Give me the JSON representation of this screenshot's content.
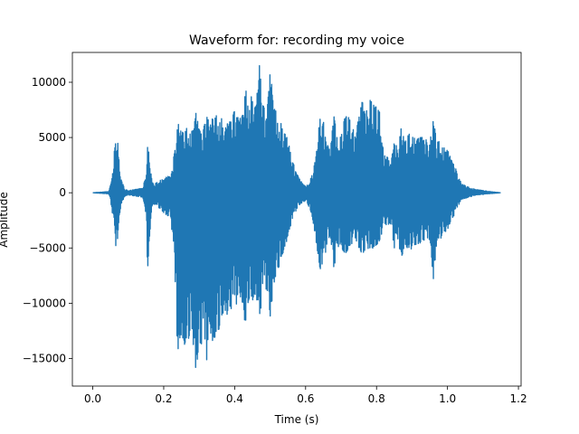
{
  "chart_data": {
    "type": "line",
    "title": "Waveform for: recording my voice",
    "xlabel": "Time (s)",
    "ylabel": "Amplitude",
    "xlim": [
      -0.0575,
      1.2075
    ],
    "ylim": [
      -17500,
      12700
    ],
    "xticks": [
      0.0,
      0.2,
      0.4,
      0.6,
      0.8,
      1.0,
      1.2
    ],
    "xtick_labels": [
      "0.0",
      "0.2",
      "0.4",
      "0.6",
      "0.8",
      "1.0",
      "1.2"
    ],
    "yticks": [
      -15000,
      -10000,
      -5000,
      0,
      5000,
      10000
    ],
    "ytick_labels": [
      "−15000",
      "−10000",
      "−5000",
      "0",
      "5000",
      "10000"
    ],
    "grid": false,
    "series": [
      {
        "color": "#1f77b4",
        "envelope": {
          "t": [
            0.0,
            0.045,
            0.05,
            0.055,
            0.06,
            0.065,
            0.07,
            0.075,
            0.08,
            0.085,
            0.09,
            0.1,
            0.12,
            0.14,
            0.15,
            0.155,
            0.16,
            0.165,
            0.17,
            0.18,
            0.19,
            0.2,
            0.21,
            0.22,
            0.23,
            0.24,
            0.25,
            0.26,
            0.27,
            0.28,
            0.29,
            0.3,
            0.31,
            0.32,
            0.33,
            0.34,
            0.35,
            0.36,
            0.37,
            0.38,
            0.39,
            0.4,
            0.41,
            0.42,
            0.43,
            0.44,
            0.45,
            0.46,
            0.47,
            0.48,
            0.49,
            0.5,
            0.51,
            0.52,
            0.53,
            0.54,
            0.55,
            0.56,
            0.57,
            0.58,
            0.59,
            0.6,
            0.61,
            0.62,
            0.63,
            0.64,
            0.65,
            0.66,
            0.67,
            0.68,
            0.69,
            0.7,
            0.71,
            0.72,
            0.73,
            0.74,
            0.75,
            0.76,
            0.77,
            0.78,
            0.79,
            0.8,
            0.81,
            0.82,
            0.83,
            0.84,
            0.85,
            0.86,
            0.87,
            0.88,
            0.89,
            0.9,
            0.91,
            0.92,
            0.93,
            0.94,
            0.95,
            0.96,
            0.97,
            0.98,
            0.99,
            1.0,
            1.01,
            1.02,
            1.03,
            1.04,
            1.06,
            1.08,
            1.1,
            1.12,
            1.15
          ],
          "max": [
            0,
            100,
            700,
            1500,
            3500,
            5400,
            4800,
            2500,
            1200,
            800,
            300,
            200,
            300,
            400,
            1500,
            4500,
            3000,
            1500,
            800,
            900,
            1200,
            1200,
            1500,
            1400,
            3600,
            6300,
            5500,
            5700,
            6000,
            5600,
            7400,
            5800,
            5300,
            7300,
            6000,
            7100,
            7000,
            7200,
            5700,
            6300,
            6600,
            7500,
            6800,
            6800,
            9500,
            8700,
            8700,
            7800,
            11600,
            8000,
            7000,
            11000,
            8400,
            7000,
            6300,
            5600,
            4800,
            3200,
            2200,
            1400,
            900,
            600,
            900,
            1800,
            3500,
            6700,
            6500,
            4400,
            3800,
            7500,
            4800,
            5100,
            7000,
            6900,
            6200,
            5200,
            6800,
            8400,
            7400,
            8500,
            8200,
            7800,
            7200,
            3500,
            3300,
            2500,
            4800,
            4000,
            6000,
            4600,
            5300,
            5300,
            4900,
            5000,
            5000,
            4800,
            4400,
            6700,
            4700,
            4600,
            4100,
            4000,
            3000,
            2500,
            1500,
            800,
            500,
            300,
            200,
            100,
            0
          ],
          "min": [
            0,
            -100,
            -700,
            -1800,
            -3000,
            -5000,
            -4300,
            -2200,
            -1000,
            -700,
            -300,
            -200,
            -300,
            -400,
            -2000,
            -7500,
            -4300,
            -1800,
            -1000,
            -1100,
            -1500,
            -1800,
            -2100,
            -2200,
            -6500,
            -15500,
            -12700,
            -14000,
            -13200,
            -12600,
            -16000,
            -14500,
            -13300,
            -15600,
            -12600,
            -13700,
            -12700,
            -12100,
            -10500,
            -11200,
            -10600,
            -10600,
            -9600,
            -9600,
            -12100,
            -9600,
            -9900,
            -9100,
            -11800,
            -8900,
            -8700,
            -11500,
            -8300,
            -7100,
            -6300,
            -5000,
            -4100,
            -2800,
            -1800,
            -1200,
            -900,
            -700,
            -1300,
            -2400,
            -4500,
            -7300,
            -6600,
            -4700,
            -3900,
            -6900,
            -4900,
            -4900,
            -5500,
            -5300,
            -4800,
            -4100,
            -5100,
            -5600,
            -5000,
            -5200,
            -5000,
            -4700,
            -4600,
            -2700,
            -3000,
            -2800,
            -5000,
            -4300,
            -6100,
            -4600,
            -5200,
            -5100,
            -4700,
            -4700,
            -4300,
            -4300,
            -4300,
            -8000,
            -4300,
            -4200,
            -3600,
            -3400,
            -2500,
            -2000,
            -1200,
            -600,
            -400,
            -200,
            -150,
            -80,
            0
          ]
        }
      }
    ]
  }
}
